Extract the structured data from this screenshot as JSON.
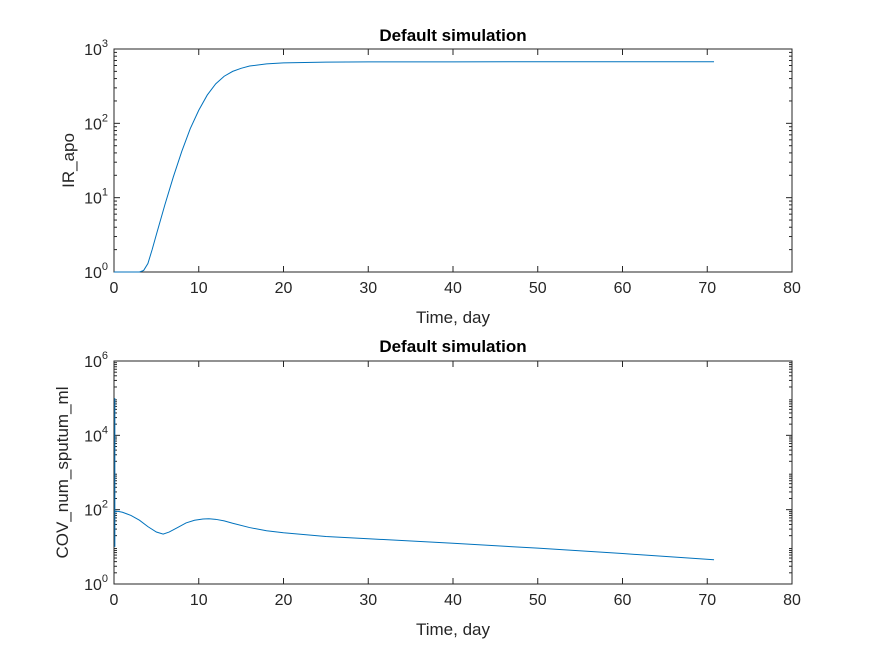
{
  "chart_data": [
    {
      "type": "line",
      "title": "Default simulation",
      "xlabel": "Time, day",
      "ylabel": "IR_apo",
      "xlim": [
        0,
        80
      ],
      "ylim": [
        1,
        1000
      ],
      "yscale": "log",
      "xticks": [
        0,
        10,
        20,
        30,
        40,
        50,
        60,
        70,
        80
      ],
      "yticks": [
        {
          "base": "10",
          "exp": "0"
        },
        {
          "base": "10",
          "exp": "1"
        },
        {
          "base": "10",
          "exp": "2"
        },
        {
          "base": "10",
          "exp": "3"
        }
      ],
      "grid": false,
      "color": "#0072BD",
      "series": [
        {
          "x": [
            0,
            2,
            3,
            3.5,
            4,
            4.5,
            5,
            6,
            7,
            8,
            9,
            10,
            11,
            12,
            13,
            14,
            15,
            16,
            18,
            20,
            25,
            30,
            40,
            50,
            60,
            70.8
          ],
          "y": [
            1,
            1,
            1,
            1.05,
            1.3,
            2.0,
            3.2,
            8,
            19,
            42,
            85,
            150,
            240,
            340,
            430,
            500,
            550,
            590,
            630,
            650,
            665,
            670,
            672,
            673,
            674,
            675
          ]
        }
      ]
    },
    {
      "type": "line",
      "title": "Default simulation",
      "xlabel": "Time, day",
      "ylabel": "COV_num_sputum_ml",
      "xlim": [
        0,
        80
      ],
      "ylim": [
        1,
        1000000
      ],
      "yscale": "log",
      "xticks": [
        0,
        10,
        20,
        30,
        40,
        50,
        60,
        70,
        80
      ],
      "yticks": [
        {
          "base": "10",
          "exp": "0"
        },
        {
          "base": "10",
          "exp": "2"
        },
        {
          "base": "10",
          "exp": "4"
        },
        {
          "base": "10",
          "exp": "6"
        }
      ],
      "grid": false,
      "color": "#0072BD",
      "initial_transient": {
        "x": 0.1,
        "y_min": 10,
        "y_max": 100000
      },
      "series": [
        {
          "x": [
            0.1,
            0.5,
            1,
            2,
            3,
            4,
            5,
            5.8,
            6.5,
            7.5,
            8.5,
            9.5,
            10.5,
            11.2,
            12,
            13,
            14,
            16,
            18,
            20,
            25,
            30,
            40,
            50,
            60,
            70.8
          ],
          "y": [
            90,
            90,
            85,
            70,
            52,
            35,
            25,
            22,
            25,
            33,
            44,
            52,
            56,
            57,
            55,
            50,
            43,
            33,
            27,
            24,
            19,
            16.5,
            12.5,
            9.2,
            6.6,
            4.5
          ]
        }
      ]
    }
  ]
}
